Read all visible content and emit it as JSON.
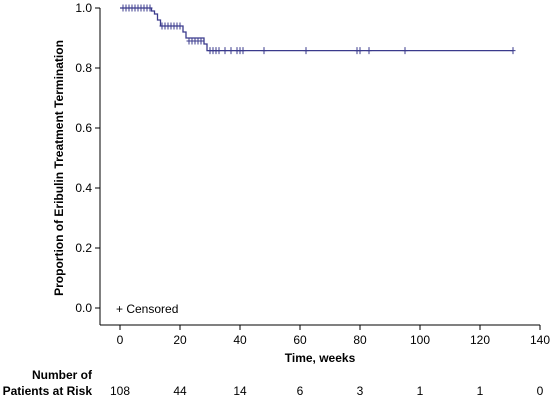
{
  "chart_data": {
    "type": "line",
    "xlabel": "Time, weeks",
    "ylabel": "Proportion of Eribulin Treatment Termination",
    "xlim": [
      0,
      140
    ],
    "ylim": [
      0,
      1.0
    ],
    "x_ticks": [
      "0",
      "20",
      "40",
      "60",
      "80",
      "100",
      "120",
      "140"
    ],
    "y_ticks": [
      "0.0",
      "0.2",
      "0.4",
      "0.6",
      "0.8",
      "1.0"
    ],
    "grid": false,
    "line_color": "#3a3a8c",
    "series": [
      {
        "step_x": [
          0,
          10.5,
          11.5,
          12.5,
          13.5,
          21,
          22,
          28,
          29,
          131
        ],
        "step_y": [
          1.0,
          0.99,
          0.98,
          0.96,
          0.94,
          0.92,
          0.9,
          0.88,
          0.858,
          0.858
        ],
        "censored": [
          {
            "x": 1,
            "y": 1.0
          },
          {
            "x": 2,
            "y": 1.0
          },
          {
            "x": 3,
            "y": 1.0
          },
          {
            "x": 4,
            "y": 1.0
          },
          {
            "x": 5,
            "y": 1.0
          },
          {
            "x": 6,
            "y": 1.0
          },
          {
            "x": 7,
            "y": 1.0
          },
          {
            "x": 8,
            "y": 1.0
          },
          {
            "x": 9,
            "y": 1.0
          },
          {
            "x": 10,
            "y": 1.0
          },
          {
            "x": 14,
            "y": 0.94
          },
          {
            "x": 15,
            "y": 0.94
          },
          {
            "x": 16,
            "y": 0.94
          },
          {
            "x": 17,
            "y": 0.94
          },
          {
            "x": 18,
            "y": 0.94
          },
          {
            "x": 19,
            "y": 0.94
          },
          {
            "x": 20,
            "y": 0.94
          },
          {
            "x": 23,
            "y": 0.89
          },
          {
            "x": 24,
            "y": 0.89
          },
          {
            "x": 25,
            "y": 0.89
          },
          {
            "x": 26,
            "y": 0.89
          },
          {
            "x": 27,
            "y": 0.89
          },
          {
            "x": 30,
            "y": 0.858
          },
          {
            "x": 31,
            "y": 0.858
          },
          {
            "x": 32,
            "y": 0.858
          },
          {
            "x": 33,
            "y": 0.858
          },
          {
            "x": 35,
            "y": 0.858
          },
          {
            "x": 37,
            "y": 0.858
          },
          {
            "x": 39,
            "y": 0.858
          },
          {
            "x": 40,
            "y": 0.858
          },
          {
            "x": 41,
            "y": 0.858
          },
          {
            "x": 48,
            "y": 0.858
          },
          {
            "x": 62,
            "y": 0.858
          },
          {
            "x": 79,
            "y": 0.858
          },
          {
            "x": 80,
            "y": 0.858
          },
          {
            "x": 83,
            "y": 0.858
          },
          {
            "x": 95,
            "y": 0.858
          },
          {
            "x": 131,
            "y": 0.858
          }
        ]
      }
    ],
    "legend": {
      "label": "+ Censored",
      "placement": "bottom-left"
    },
    "risk_table": {
      "title_line1": "Number of",
      "title_line2": "Patients at Risk",
      "times": [
        0,
        20,
        40,
        60,
        80,
        100,
        120,
        140
      ],
      "values": [
        "108",
        "44",
        "14",
        "6",
        "3",
        "1",
        "1",
        "0"
      ]
    }
  }
}
